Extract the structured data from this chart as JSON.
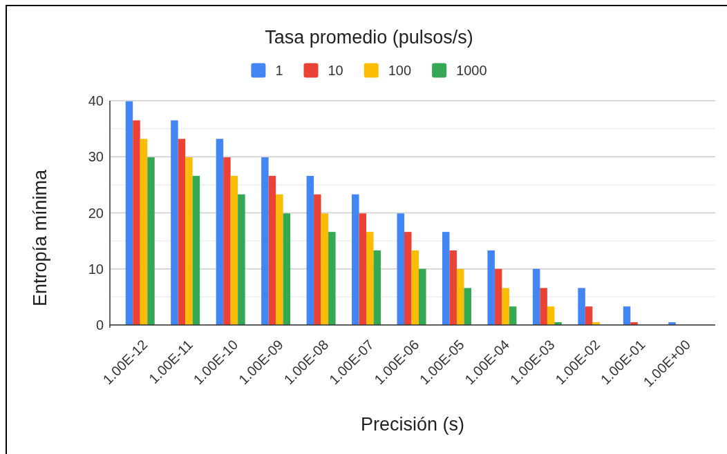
{
  "chart_data": {
    "type": "bar",
    "legend_title": "Tasa promedio (pulsos/s)",
    "xlabel": "Precisión (s)",
    "ylabel": "Entropía mínima",
    "categories": [
      "1.00E-12",
      "1.00E-11",
      "1.00E-10",
      "1.00E-09",
      "1.00E-08",
      "1.00E-07",
      "1.00E-06",
      "1.00E-05",
      "1.00E-04",
      "1.00E-03",
      "1.00E-02",
      "1.00E-01",
      "1.00E+00"
    ],
    "series": [
      {
        "name": "1",
        "color": "#4285f4",
        "values": [
          39.9,
          36.5,
          33.2,
          29.9,
          26.6,
          23.3,
          19.9,
          16.6,
          13.3,
          10,
          6.6,
          3.3,
          0.5
        ]
      },
      {
        "name": "10",
        "color": "#ea4335",
        "values": [
          36.5,
          33.2,
          29.9,
          26.6,
          23.3,
          19.9,
          16.6,
          13.3,
          10,
          6.6,
          3.3,
          0.5,
          0
        ]
      },
      {
        "name": "100",
        "color": "#fbbc04",
        "values": [
          33.2,
          29.9,
          26.6,
          23.3,
          19.9,
          16.6,
          13.3,
          10,
          6.6,
          3.3,
          0.5,
          0,
          0
        ]
      },
      {
        "name": "1000",
        "color": "#34a853",
        "values": [
          29.9,
          26.6,
          23.3,
          19.9,
          16.6,
          13.3,
          10,
          6.6,
          3.3,
          0.5,
          0,
          0,
          0
        ]
      }
    ],
    "ylim": [
      0,
      40
    ],
    "yticks": [
      0,
      {
        "value": 5,
        "label": null
      },
      10,
      {
        "value": 15,
        "label": null
      },
      20,
      {
        "value": 25,
        "label": null
      },
      30,
      {
        "value": 35,
        "label": null
      },
      40
    ],
    "grid": "y",
    "legend": "top"
  }
}
